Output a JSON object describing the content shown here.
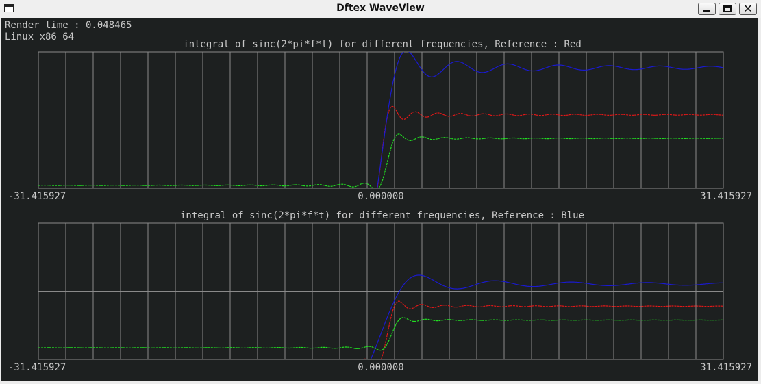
{
  "window": {
    "title": "Dftex WaveView",
    "minimize_icon": "minimize-icon",
    "maximize_icon": "maximize-icon",
    "close_icon": "close-icon",
    "close_glyph": "✕"
  },
  "info": {
    "render_time": "Render time : 0.048465",
    "platform": "Linux x86_64"
  },
  "colors": {
    "background": "#1d2020",
    "grid": "#8a8a8a",
    "text": "#c8c8c8",
    "red": "#e01818",
    "green": "#22e022",
    "blue": "#1a1ad0"
  },
  "chart_data": [
    {
      "type": "line",
      "title": "integral of sinc(2*pi*f*t) for different frequencies, Reference : Red",
      "xlim": [
        -31.415927,
        31.415927
      ],
      "ylim": [
        -0.84,
        3.5
      ],
      "x_tick_labels": [
        "-31.415927",
        "0.000000",
        "31.415927"
      ],
      "grid": true,
      "series": [
        {
          "color": "red",
          "freq": 1.0,
          "amp": 3.0,
          "shift": 0.0
        },
        {
          "color": "green",
          "freq": 1.0,
          "amp": 1.5,
          "shift": 0.6
        },
        {
          "color": "blue",
          "freq": 0.45,
          "amp": 6.0,
          "shift": 0.0
        }
      ]
    },
    {
      "type": "line",
      "title": "integral of sinc(2*pi*f*t) for different frequencies, Reference : Blue",
      "xlim": [
        -31.415927,
        31.415927
      ],
      "ylim": [
        -0.46,
        2.0
      ],
      "x_tick_labels": [
        "-31.415927",
        "0.000000",
        "31.415927"
      ],
      "grid": true,
      "series": [
        {
          "color": "red",
          "freq": 1.0,
          "amp": 1.0,
          "shift": 0.6
        },
        {
          "color": "green",
          "freq": 1.0,
          "amp": 0.5,
          "shift": 1.0
        },
        {
          "color": "blue",
          "freq": 0.3,
          "amp": 1.8,
          "shift": 0.0
        }
      ]
    }
  ]
}
